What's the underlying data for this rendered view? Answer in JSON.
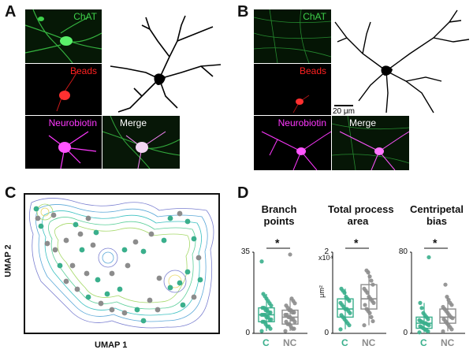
{
  "panels": {
    "A": "A",
    "B": "B",
    "C": "C",
    "D": "D"
  },
  "panelA": {
    "labels": [
      "ChAT",
      "Beads",
      "Neurobiotin",
      "Merge"
    ],
    "colors": {
      "chat": "#3ecf4a",
      "beads": "#ff2020",
      "neurobiotin": "#ff38ff",
      "merge": "#ffffff"
    }
  },
  "panelB": {
    "labels": [
      "ChAT",
      "Beads",
      "Neurobiotin",
      "Merge"
    ],
    "scalebar": "20 μm"
  },
  "umap": {
    "xlabel": "UMAP 1",
    "ylabel": "UMAP 2",
    "colors": {
      "C": "#3aaf8c",
      "NC": "#8c8c8c"
    }
  },
  "chart_data": [
    {
      "type": "box",
      "title": "Branch\npoints",
      "title_line1": "Branch",
      "title_line2": "points",
      "yticks": [
        "35",
        "0"
      ],
      "ylim": [
        0,
        35
      ],
      "unit": "",
      "categories": [
        "C",
        "NC"
      ],
      "significance": "*",
      "series": [
        {
          "name": "C",
          "q1": 5,
          "median": 8,
          "q3": 11,
          "whisker_low": 1,
          "whisker_high": 17,
          "points": [
            1,
            2,
            3,
            3,
            4,
            5,
            5,
            6,
            6,
            7,
            7,
            8,
            8,
            8,
            9,
            9,
            10,
            10,
            11,
            11,
            12,
            13,
            14,
            15,
            16,
            17,
            31
          ]
        },
        {
          "name": "NC",
          "q1": 4,
          "median": 7,
          "q3": 10,
          "whisker_low": 1,
          "whisker_high": 15,
          "points": [
            1,
            2,
            2,
            3,
            4,
            4,
            5,
            5,
            6,
            6,
            7,
            7,
            8,
            8,
            9,
            9,
            10,
            10,
            11,
            12,
            13,
            14,
            15,
            34
          ]
        }
      ]
    },
    {
      "type": "box",
      "title": "Total process\narea",
      "title_line1": "Total process",
      "title_line2": "area",
      "yticks": [
        "2",
        "0"
      ],
      "ylim": [
        0,
        2
      ],
      "unit": "x10⁴",
      "yunit": "μm²",
      "categories": [
        "C",
        "NC"
      ],
      "significance": "*",
      "series": [
        {
          "name": "C",
          "q1": 0.4,
          "median": 0.6,
          "q3": 0.85,
          "whisker_low": 0.1,
          "whisker_high": 1.1,
          "points": [
            0.1,
            0.2,
            0.25,
            0.3,
            0.35,
            0.4,
            0.45,
            0.5,
            0.55,
            0.6,
            0.6,
            0.65,
            0.7,
            0.75,
            0.8,
            0.85,
            0.9,
            1.0,
            1.05,
            1.1
          ]
        },
        {
          "name": "NC",
          "q1": 0.6,
          "median": 0.85,
          "q3": 1.2,
          "whisker_low": 0.2,
          "whisker_high": 1.55,
          "points": [
            0.2,
            0.3,
            0.4,
            0.5,
            0.55,
            0.6,
            0.7,
            0.75,
            0.8,
            0.85,
            0.9,
            1.0,
            1.05,
            1.1,
            1.2,
            1.3,
            1.4,
            1.5,
            1.55
          ]
        }
      ]
    },
    {
      "type": "box",
      "title": "Centripetal\nbias",
      "title_line1": "Centripetal",
      "title_line2": "bias",
      "yticks": [
        "80",
        "0"
      ],
      "ylim": [
        0,
        80
      ],
      "unit": "",
      "categories": [
        "C",
        "NC"
      ],
      "significance": "*",
      "series": [
        {
          "name": "C",
          "q1": 5,
          "median": 10,
          "q3": 16,
          "whisker_low": 1,
          "whisker_high": 30,
          "points": [
            1,
            2,
            3,
            4,
            5,
            6,
            7,
            8,
            9,
            10,
            10,
            11,
            12,
            13,
            14,
            16,
            18,
            20,
            25,
            30,
            75
          ]
        },
        {
          "name": "NC",
          "q1": 10,
          "median": 16,
          "q3": 24,
          "whisker_low": 2,
          "whisker_high": 36,
          "points": [
            2,
            4,
            6,
            8,
            10,
            12,
            14,
            15,
            16,
            18,
            20,
            22,
            24,
            26,
            28,
            30,
            33,
            36,
            48
          ]
        }
      ]
    }
  ]
}
